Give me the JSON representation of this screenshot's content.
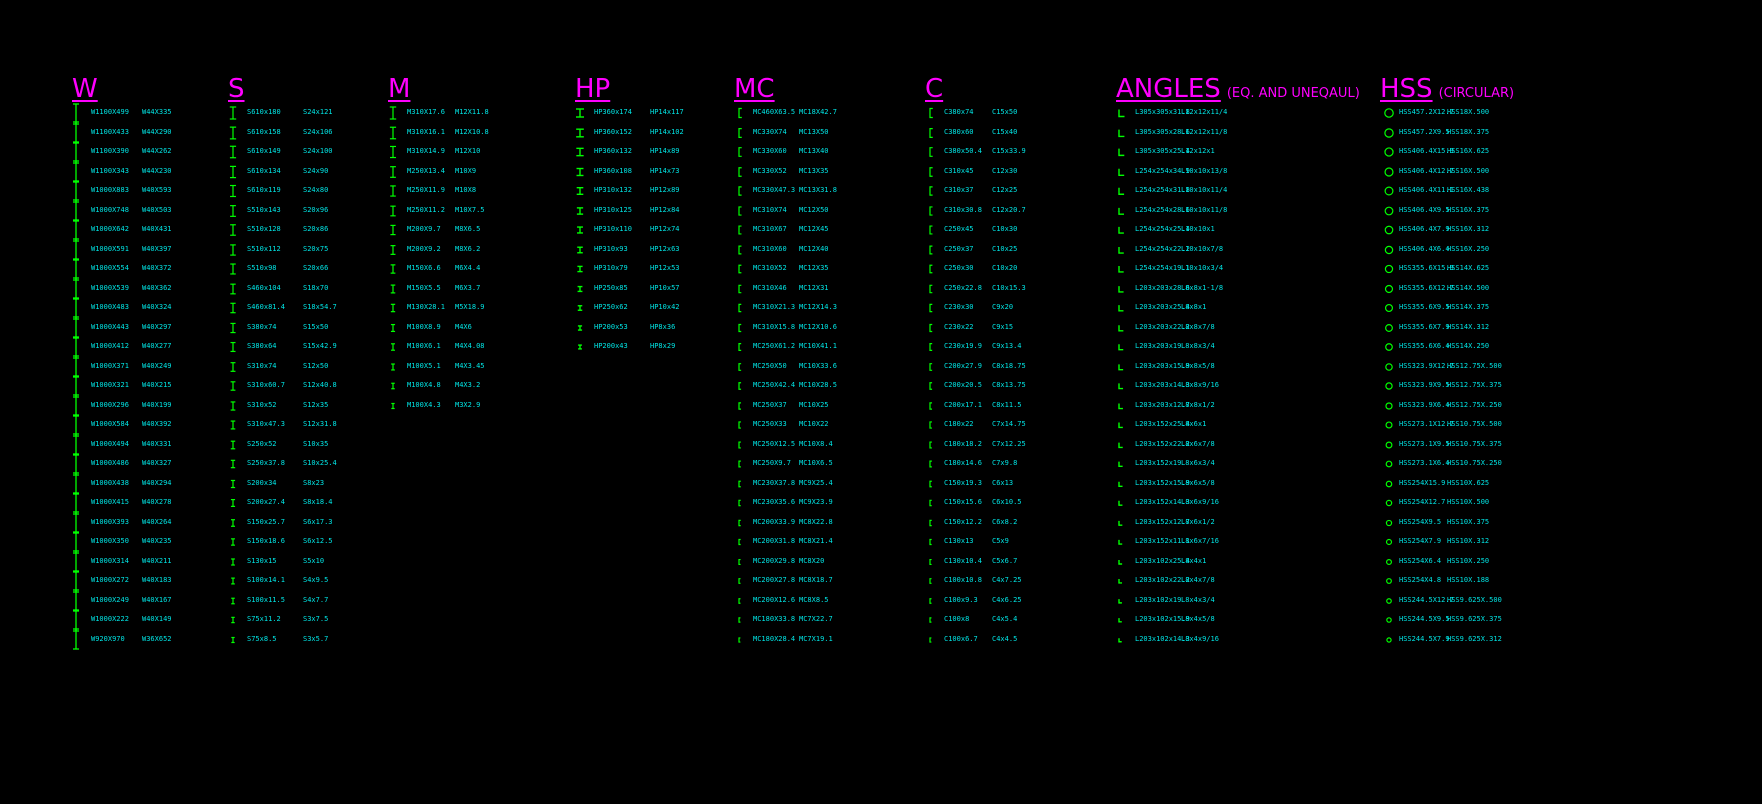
{
  "colors": {
    "background": "#000000",
    "title": "#ff00ff",
    "label": "#00e5e5",
    "symbol": "#00ff00"
  },
  "sections": [
    {
      "id": "w",
      "title": "W",
      "subtitle": "",
      "icon": "wide-flange-shape-icon",
      "rows": [
        [
          "W1100X499",
          "W44X335"
        ],
        [
          "W1100X433",
          "W44X290"
        ],
        [
          "W1100X390",
          "W44X262"
        ],
        [
          "W1100X343",
          "W44X230"
        ],
        [
          "W1000X883",
          "W40X593"
        ],
        [
          "W1000X748",
          "W40X503"
        ],
        [
          "W1000X642",
          "W40X431"
        ],
        [
          "W1000X591",
          "W40X397"
        ],
        [
          "W1000X554",
          "W40X372"
        ],
        [
          "W1000X539",
          "W40X362"
        ],
        [
          "W1000X483",
          "W40X324"
        ],
        [
          "W1000X443",
          "W40X297"
        ],
        [
          "W1000X412",
          "W40X277"
        ],
        [
          "W1000X371",
          "W40X249"
        ],
        [
          "W1000X321",
          "W40X215"
        ],
        [
          "W1000X296",
          "W40X199"
        ],
        [
          "W1000X584",
          "W40X392"
        ],
        [
          "W1000X494",
          "W40X331"
        ],
        [
          "W1000X486",
          "W40X327"
        ],
        [
          "W1000X438",
          "W40X294"
        ],
        [
          "W1000X415",
          "W40X278"
        ],
        [
          "W1000X393",
          "W40X264"
        ],
        [
          "W1000X350",
          "W40X235"
        ],
        [
          "W1000X314",
          "W40X211"
        ],
        [
          "W1000X272",
          "W40X183"
        ],
        [
          "W1000X249",
          "W40X167"
        ],
        [
          "W1000X222",
          "W40X149"
        ],
        [
          "W920X970",
          "W36X652"
        ]
      ]
    },
    {
      "id": "s",
      "title": "S",
      "subtitle": "",
      "icon": "s-beam-shape-icon",
      "rows": [
        [
          "S610x180",
          "S24x121"
        ],
        [
          "S610x158",
          "S24x106"
        ],
        [
          "S610x149",
          "S24x100"
        ],
        [
          "S610x134",
          "S24x90"
        ],
        [
          "S610x119",
          "S24x80"
        ],
        [
          "S510x143",
          "S20x96"
        ],
        [
          "S510x128",
          "S20x86"
        ],
        [
          "S510x112",
          "S20x75"
        ],
        [
          "S510x98",
          "S20x66"
        ],
        [
          "S460x104",
          "S18x70"
        ],
        [
          "S460x81.4",
          "S18x54.7"
        ],
        [
          "S380x74",
          "S15x50"
        ],
        [
          "S380x64",
          "S15x42.9"
        ],
        [
          "S310x74",
          "S12x50"
        ],
        [
          "S310x60.7",
          "S12x40.8"
        ],
        [
          "S310x52",
          "S12x35"
        ],
        [
          "S310x47.3",
          "S12x31.8"
        ],
        [
          "S250x52",
          "S10x35"
        ],
        [
          "S250x37.8",
          "S10x25.4"
        ],
        [
          "S200x34",
          "S8x23"
        ],
        [
          "S200x27.4",
          "S8x18.4"
        ],
        [
          "S150x25.7",
          "S6x17.3"
        ],
        [
          "S150x18.6",
          "S6x12.5"
        ],
        [
          "S130x15",
          "S5x10"
        ],
        [
          "S100x14.1",
          "S4x9.5"
        ],
        [
          "S100x11.5",
          "S4x7.7"
        ],
        [
          "S75x11.2",
          "S3x7.5"
        ],
        [
          "S75x8.5",
          "S3x5.7"
        ]
      ]
    },
    {
      "id": "m",
      "title": "M",
      "subtitle": "",
      "icon": "m-shape-icon",
      "rows": [
        [
          "M310X17.6",
          "M12X11.8"
        ],
        [
          "M310X16.1",
          "M12X10.8"
        ],
        [
          "M310X14.9",
          "M12X10"
        ],
        [
          "M250X13.4",
          "M10X9"
        ],
        [
          "M250X11.9",
          "M10X8"
        ],
        [
          "M250X11.2",
          "M10X7.5"
        ],
        [
          "M200X9.7",
          "M8X6.5"
        ],
        [
          "M200X9.2",
          "M8X6.2"
        ],
        [
          "M150X6.6",
          "M6X4.4"
        ],
        [
          "M150X5.5",
          "M6X3.7"
        ],
        [
          "M130X28.1",
          "M5X18.9"
        ],
        [
          "M100X8.9",
          "M4X6"
        ],
        [
          "M100X6.1",
          "M4X4.08"
        ],
        [
          "M100X5.1",
          "M4X3.45"
        ],
        [
          "M100X4.8",
          "M4X3.2"
        ],
        [
          "M100X4.3",
          "M3X2.9"
        ]
      ]
    },
    {
      "id": "hp",
      "title": "HP",
      "subtitle": "",
      "icon": "h-pile-shape-icon",
      "rows": [
        [
          "HP360x174",
          "HP14x117"
        ],
        [
          "HP360x152",
          "HP14x102"
        ],
        [
          "HP360x132",
          "HP14x89"
        ],
        [
          "HP360x108",
          "HP14x73"
        ],
        [
          "HP310x132",
          "HP12x89"
        ],
        [
          "HP310x125",
          "HP12x84"
        ],
        [
          "HP310x110",
          "HP12x74"
        ],
        [
          "HP310x93",
          "HP12x63"
        ],
        [
          "HP310x79",
          "HP12x53"
        ],
        [
          "HP250x85",
          "HP10x57"
        ],
        [
          "HP250x62",
          "HP10x42"
        ],
        [
          "HP200x53",
          "HP8x36"
        ],
        [
          "HP200x43",
          "HP8x29"
        ]
      ]
    },
    {
      "id": "mc",
      "title": "MC",
      "subtitle": "",
      "icon": "mc-channel-shape-icon",
      "rows": [
        [
          "MC460X63.5",
          "MC18X42.7"
        ],
        [
          "MC330X74",
          "MC13X50"
        ],
        [
          "MC330X60",
          "MC13X40"
        ],
        [
          "MC330X52",
          "MC13X35"
        ],
        [
          "MC330X47.3",
          "MC13X31.8"
        ],
        [
          "MC310X74",
          "MC12X50"
        ],
        [
          "MC310X67",
          "MC12X45"
        ],
        [
          "MC310X60",
          "MC12X40"
        ],
        [
          "MC310X52",
          "MC12X35"
        ],
        [
          "MC310X46",
          "MC12X31"
        ],
        [
          "MC310X21.3",
          "MC12X14.3"
        ],
        [
          "MC310X15.8",
          "MC12X10.6"
        ],
        [
          "MC250X61.2",
          "MC10X41.1"
        ],
        [
          "MC250X50",
          "MC10X33.6"
        ],
        [
          "MC250X42.4",
          "MC10X28.5"
        ],
        [
          "MC250X37",
          "MC10X25"
        ],
        [
          "MC250X33",
          "MC10X22"
        ],
        [
          "MC250X12.5",
          "MC10X8.4"
        ],
        [
          "MC250X9.7",
          "MC10X6.5"
        ],
        [
          "MC230X37.8",
          "MC9X25.4"
        ],
        [
          "MC230X35.6",
          "MC9X23.9"
        ],
        [
          "MC200X33.9",
          "MC8X22.8"
        ],
        [
          "MC200X31.8",
          "MC8X21.4"
        ],
        [
          "MC200X29.8",
          "MC8X20"
        ],
        [
          "MC200X27.8",
          "MC8X18.7"
        ],
        [
          "MC200X12.6",
          "MC8X8.5"
        ],
        [
          "MC180X33.8",
          "MC7X22.7"
        ],
        [
          "MC180X28.4",
          "MC7X19.1"
        ]
      ]
    },
    {
      "id": "c",
      "title": "C",
      "subtitle": "",
      "icon": "c-channel-shape-icon",
      "rows": [
        [
          "C380x74",
          "C15x50"
        ],
        [
          "C380x60",
          "C15x40"
        ],
        [
          "C380x50.4",
          "C15x33.9"
        ],
        [
          "C310x45",
          "C12x30"
        ],
        [
          "C310x37",
          "C12x25"
        ],
        [
          "C310x30.8",
          "C12x20.7"
        ],
        [
          "C250x45",
          "C10x30"
        ],
        [
          "C250x37",
          "C10x25"
        ],
        [
          "C250x30",
          "C10x20"
        ],
        [
          "C250x22.8",
          "C10x15.3"
        ],
        [
          "C230x30",
          "C9x20"
        ],
        [
          "C230x22",
          "C9x15"
        ],
        [
          "C230x19.9",
          "C9x13.4"
        ],
        [
          "C200x27.9",
          "C8x18.75"
        ],
        [
          "C200x20.5",
          "C8x13.75"
        ],
        [
          "C200x17.1",
          "C8x11.5"
        ],
        [
          "C180x22",
          "C7x14.75"
        ],
        [
          "C180x18.2",
          "C7x12.25"
        ],
        [
          "C180x14.6",
          "C7x9.8"
        ],
        [
          "C150x19.3",
          "C6x13"
        ],
        [
          "C150x15.6",
          "C6x10.5"
        ],
        [
          "C150x12.2",
          "C6x8.2"
        ],
        [
          "C130x13",
          "C5x9"
        ],
        [
          "C130x10.4",
          "C5x6.7"
        ],
        [
          "C100x10.8",
          "C4x7.25"
        ],
        [
          "C100x9.3",
          "C4x6.25"
        ],
        [
          "C100x8",
          "C4x5.4"
        ],
        [
          "C100x6.7",
          "C4x4.5"
        ]
      ]
    },
    {
      "id": "angles",
      "title": "ANGLES",
      "subtitle": "(EQ. AND UNEQAUL)",
      "icon": "angle-shape-icon",
      "rows": [
        [
          "L305x305x31.8",
          "L12x12x11/4"
        ],
        [
          "L305x305x28.6",
          "L12x12x11/8"
        ],
        [
          "L305x305x25.4",
          "L12x12x1"
        ],
        [
          "L254x254x34.9",
          "L10x10x13/8"
        ],
        [
          "L254x254x31.8",
          "L10x10x11/4"
        ],
        [
          "L254x254x28.6",
          "L10x10x11/8"
        ],
        [
          "L254x254x25.4",
          "L10x10x1"
        ],
        [
          "L254x254x22.2",
          "L10x10x7/8"
        ],
        [
          "L254x254x19.1",
          "L10x10x3/4"
        ],
        [
          "L203x203x28.6",
          "L8x8x1-1/8"
        ],
        [
          "L203x203x25.4",
          "L8x8x1"
        ],
        [
          "L203x203x22.2",
          "L8x8x7/8"
        ],
        [
          "L203x203x19",
          "L8x8x3/4"
        ],
        [
          "L203x203x15.9",
          "L8x8x5/8"
        ],
        [
          "L203x203x14.3",
          "L8x8x9/16"
        ],
        [
          "L203x203x12.7",
          "L8x8x1/2"
        ],
        [
          "L203x152x25.4",
          "L8x6x1"
        ],
        [
          "L203x152x22.2",
          "L8x6x7/8"
        ],
        [
          "L203x152x19",
          "L8x6x3/4"
        ],
        [
          "L203x152x15.9",
          "L8x6x5/8"
        ],
        [
          "L203x152x14.3",
          "L8x6x9/16"
        ],
        [
          "L203x152x12.7",
          "L8x6x1/2"
        ],
        [
          "L203x152x11.1",
          "L8x6x7/16"
        ],
        [
          "L203x102x25.4",
          "L8x4x1"
        ],
        [
          "L203x102x22.2",
          "L8x4x7/8"
        ],
        [
          "L203x102x19",
          "L8x4x3/4"
        ],
        [
          "L203x102x15.9",
          "L8x4x5/8"
        ],
        [
          "L203x102x14.3",
          "L8x4x9/16"
        ]
      ]
    },
    {
      "id": "hss",
      "title": "HSS",
      "subtitle": "(CIRCULAR)",
      "icon": "hss-circular-shape-icon",
      "rows": [
        [
          "HSS457.2X12.7",
          "HSS18X.500"
        ],
        [
          "HSS457.2X9.5",
          "HSS18X.375"
        ],
        [
          "HSS406.4X15.9",
          "HSS16X.625"
        ],
        [
          "HSS406.4X12.7",
          "HSS16X.500"
        ],
        [
          "HSS406.4X11.1",
          "HSS16X.438"
        ],
        [
          "HSS406.4X9.5",
          "HSS16X.375"
        ],
        [
          "HSS406.4X7.9",
          "HSS16X.312"
        ],
        [
          "HSS406.4X6.4",
          "HSS16X.250"
        ],
        [
          "HSS355.6X15.9",
          "HSS14X.625"
        ],
        [
          "HSS355.6X12.7",
          "HSS14X.500"
        ],
        [
          "HSS355.6X9.5",
          "HSS14X.375"
        ],
        [
          "HSS355.6X7.9",
          "HSS14X.312"
        ],
        [
          "HSS355.6X6.4",
          "HSS14X.250"
        ],
        [
          "HSS323.9X12.7",
          "HSS12.75X.500"
        ],
        [
          "HSS323.9X9.5",
          "HSS12.75X.375"
        ],
        [
          "HSS323.9X6.4",
          "HSS12.75X.250"
        ],
        [
          "HSS273.1X12.7",
          "HSS10.75X.500"
        ],
        [
          "HSS273.1X9.5",
          "HSS10.75X.375"
        ],
        [
          "HSS273.1X6.4",
          "HSS10.75X.250"
        ],
        [
          "HSS254X15.9",
          "HSS10X.625"
        ],
        [
          "HSS254X12.7",
          "HSS10X.500"
        ],
        [
          "HSS254X9.5",
          "HSS10X.375"
        ],
        [
          "HSS254X7.9",
          "HSS10X.312"
        ],
        [
          "HSS254X6.4",
          "HSS10X.250"
        ],
        [
          "HSS254X4.8",
          "HSS10X.188"
        ],
        [
          "HSS244.5X12.7",
          "HSS9.625X.500"
        ],
        [
          "HSS244.5X9.5",
          "HSS9.625X.375"
        ],
        [
          "HSS244.5X7.9",
          "HSS9.625X.312"
        ]
      ]
    }
  ]
}
